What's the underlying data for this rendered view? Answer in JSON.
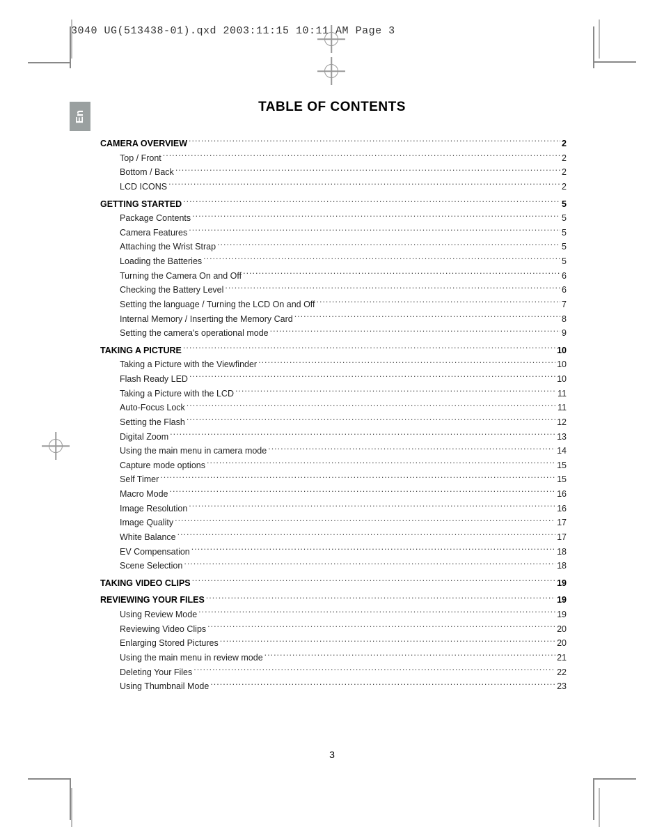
{
  "header_line": "3040 UG(513438-01).qxd  2003:11:15  10:11 AM  Page 3",
  "side_tab": "En",
  "title": "TABLE OF CONTENTS",
  "page_number": "3",
  "sections": [
    {
      "heading": {
        "label": "CAMERA OVERVIEW",
        "page": "2"
      },
      "items": [
        {
          "label": "Top / Front",
          "page": "2"
        },
        {
          "label": "Bottom / Back",
          "page": "2"
        },
        {
          "label": "LCD ICONS",
          "page": "2"
        }
      ]
    },
    {
      "heading": {
        "label": "GETTING STARTED",
        "page": "5"
      },
      "items": [
        {
          "label": "Package Contents",
          "page": "5"
        },
        {
          "label": "Camera Features",
          "page": "5"
        },
        {
          "label": "Attaching the Wrist Strap",
          "page": "5"
        },
        {
          "label": "Loading the Batteries",
          "page": "5"
        },
        {
          "label": "Turning the Camera On and Off",
          "page": "6"
        },
        {
          "label": "Checking the Battery Level",
          "page": "6"
        },
        {
          "label": "Setting the language / Turning the LCD On and Off",
          "page": "7"
        },
        {
          "label": "Internal Memory / Inserting the Memory Card",
          "page": "8"
        },
        {
          "label": "Setting the camera's operational mode",
          "page": "9"
        }
      ]
    },
    {
      "heading": {
        "label": "TAKING A PICTURE",
        "page": "10"
      },
      "items": [
        {
          "label": "Taking a Picture with the Viewfinder",
          "page": "10"
        },
        {
          "label": "Flash Ready LED",
          "page": "10"
        },
        {
          "label": "Taking a Picture with the LCD",
          "page": "11"
        },
        {
          "label": "Auto-Focus Lock",
          "page": "11"
        },
        {
          "label": "Setting the Flash",
          "page": "12"
        },
        {
          "label": "Digital Zoom",
          "page": "13"
        },
        {
          "label": "Using the main menu in camera mode",
          "page": "14"
        },
        {
          "label": "Capture mode options",
          "page": "15"
        },
        {
          "label": "Self Timer",
          "page": "15"
        },
        {
          "label": "Macro Mode",
          "page": "16"
        },
        {
          "label": "Image Resolution",
          "page": "16"
        },
        {
          "label": "Image Quality",
          "page": "17"
        },
        {
          "label": "White Balance",
          "page": "17"
        },
        {
          "label": "EV Compensation",
          "page": "18"
        },
        {
          "label": "Scene Selection",
          "page": "18"
        }
      ]
    },
    {
      "heading": {
        "label": "TAKING VIDEO CLIPS",
        "page": "19"
      },
      "items": []
    },
    {
      "heading": {
        "label": "REVIEWING YOUR FILES",
        "page": "19"
      },
      "items": [
        {
          "label": "Using Review Mode",
          "page": "19"
        },
        {
          "label": "Reviewing Video Clips",
          "page": "20"
        },
        {
          "label": "Enlarging Stored Pictures",
          "page": "20"
        },
        {
          "label": "Using the main menu in review mode",
          "page": "21"
        },
        {
          "label": "Deleting Your Files",
          "page": "22"
        },
        {
          "label": "Using Thumbnail Mode",
          "page": "23"
        }
      ]
    }
  ]
}
